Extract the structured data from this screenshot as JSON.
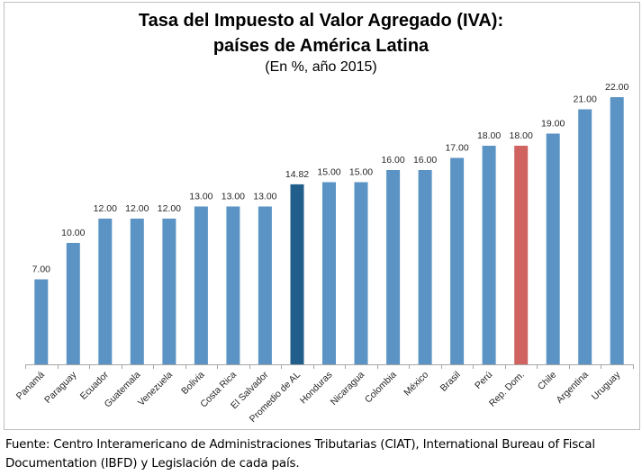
{
  "chart_data": {
    "type": "bar",
    "title": "Tasa del Impuesto al Valor Agregado (IVA):",
    "title_line2": "países de América Latina",
    "subtitle": "(En %, año 2015)",
    "xlabel": "",
    "ylabel": "",
    "ylim": [
      0,
      22
    ],
    "grid": false,
    "legend": "none",
    "categories": [
      "Panamá",
      "Paraguay",
      "Ecuador",
      "Guatemala",
      "Venezuela",
      "Bolivia",
      "Costa Rica",
      "El Salvador",
      "Promedio de AL",
      "Honduras",
      "Nicaragua",
      "Colombia",
      "México",
      "Brasil",
      "Perú",
      "Rep. Dom.",
      "Chile",
      "Argentina",
      "Uruguay"
    ],
    "values": [
      7.0,
      10.0,
      12.0,
      12.0,
      12.0,
      13.0,
      13.0,
      13.0,
      14.82,
      15.0,
      15.0,
      16.0,
      16.0,
      17.0,
      18.0,
      18.0,
      19.0,
      21.0,
      22.0
    ],
    "data_labels": [
      "7.00",
      "10.00",
      "12.00",
      "12.00",
      "12.00",
      "13.00",
      "13.00",
      "13.00",
      "14.82",
      "15.00",
      "15.00",
      "16.00",
      "16.00",
      "17.00",
      "18.00",
      "18.00",
      "19.00",
      "21.00",
      "22.00"
    ],
    "colors": {
      "default": "#5b93c4",
      "highlight_average": "#215e8c",
      "highlight_country": "#d06360",
      "axis": "#a6a6a6"
    },
    "highlights": {
      "Promedio de AL": "highlight_average",
      "Rep. Dom.": "highlight_country"
    }
  },
  "source": {
    "line1": "Fuente: Centro Interamericano de Administraciones Tributarias (CIAT), International Bureau of Fiscal",
    "line2": "Documentation (IBFD) y Legislación de cada país."
  }
}
